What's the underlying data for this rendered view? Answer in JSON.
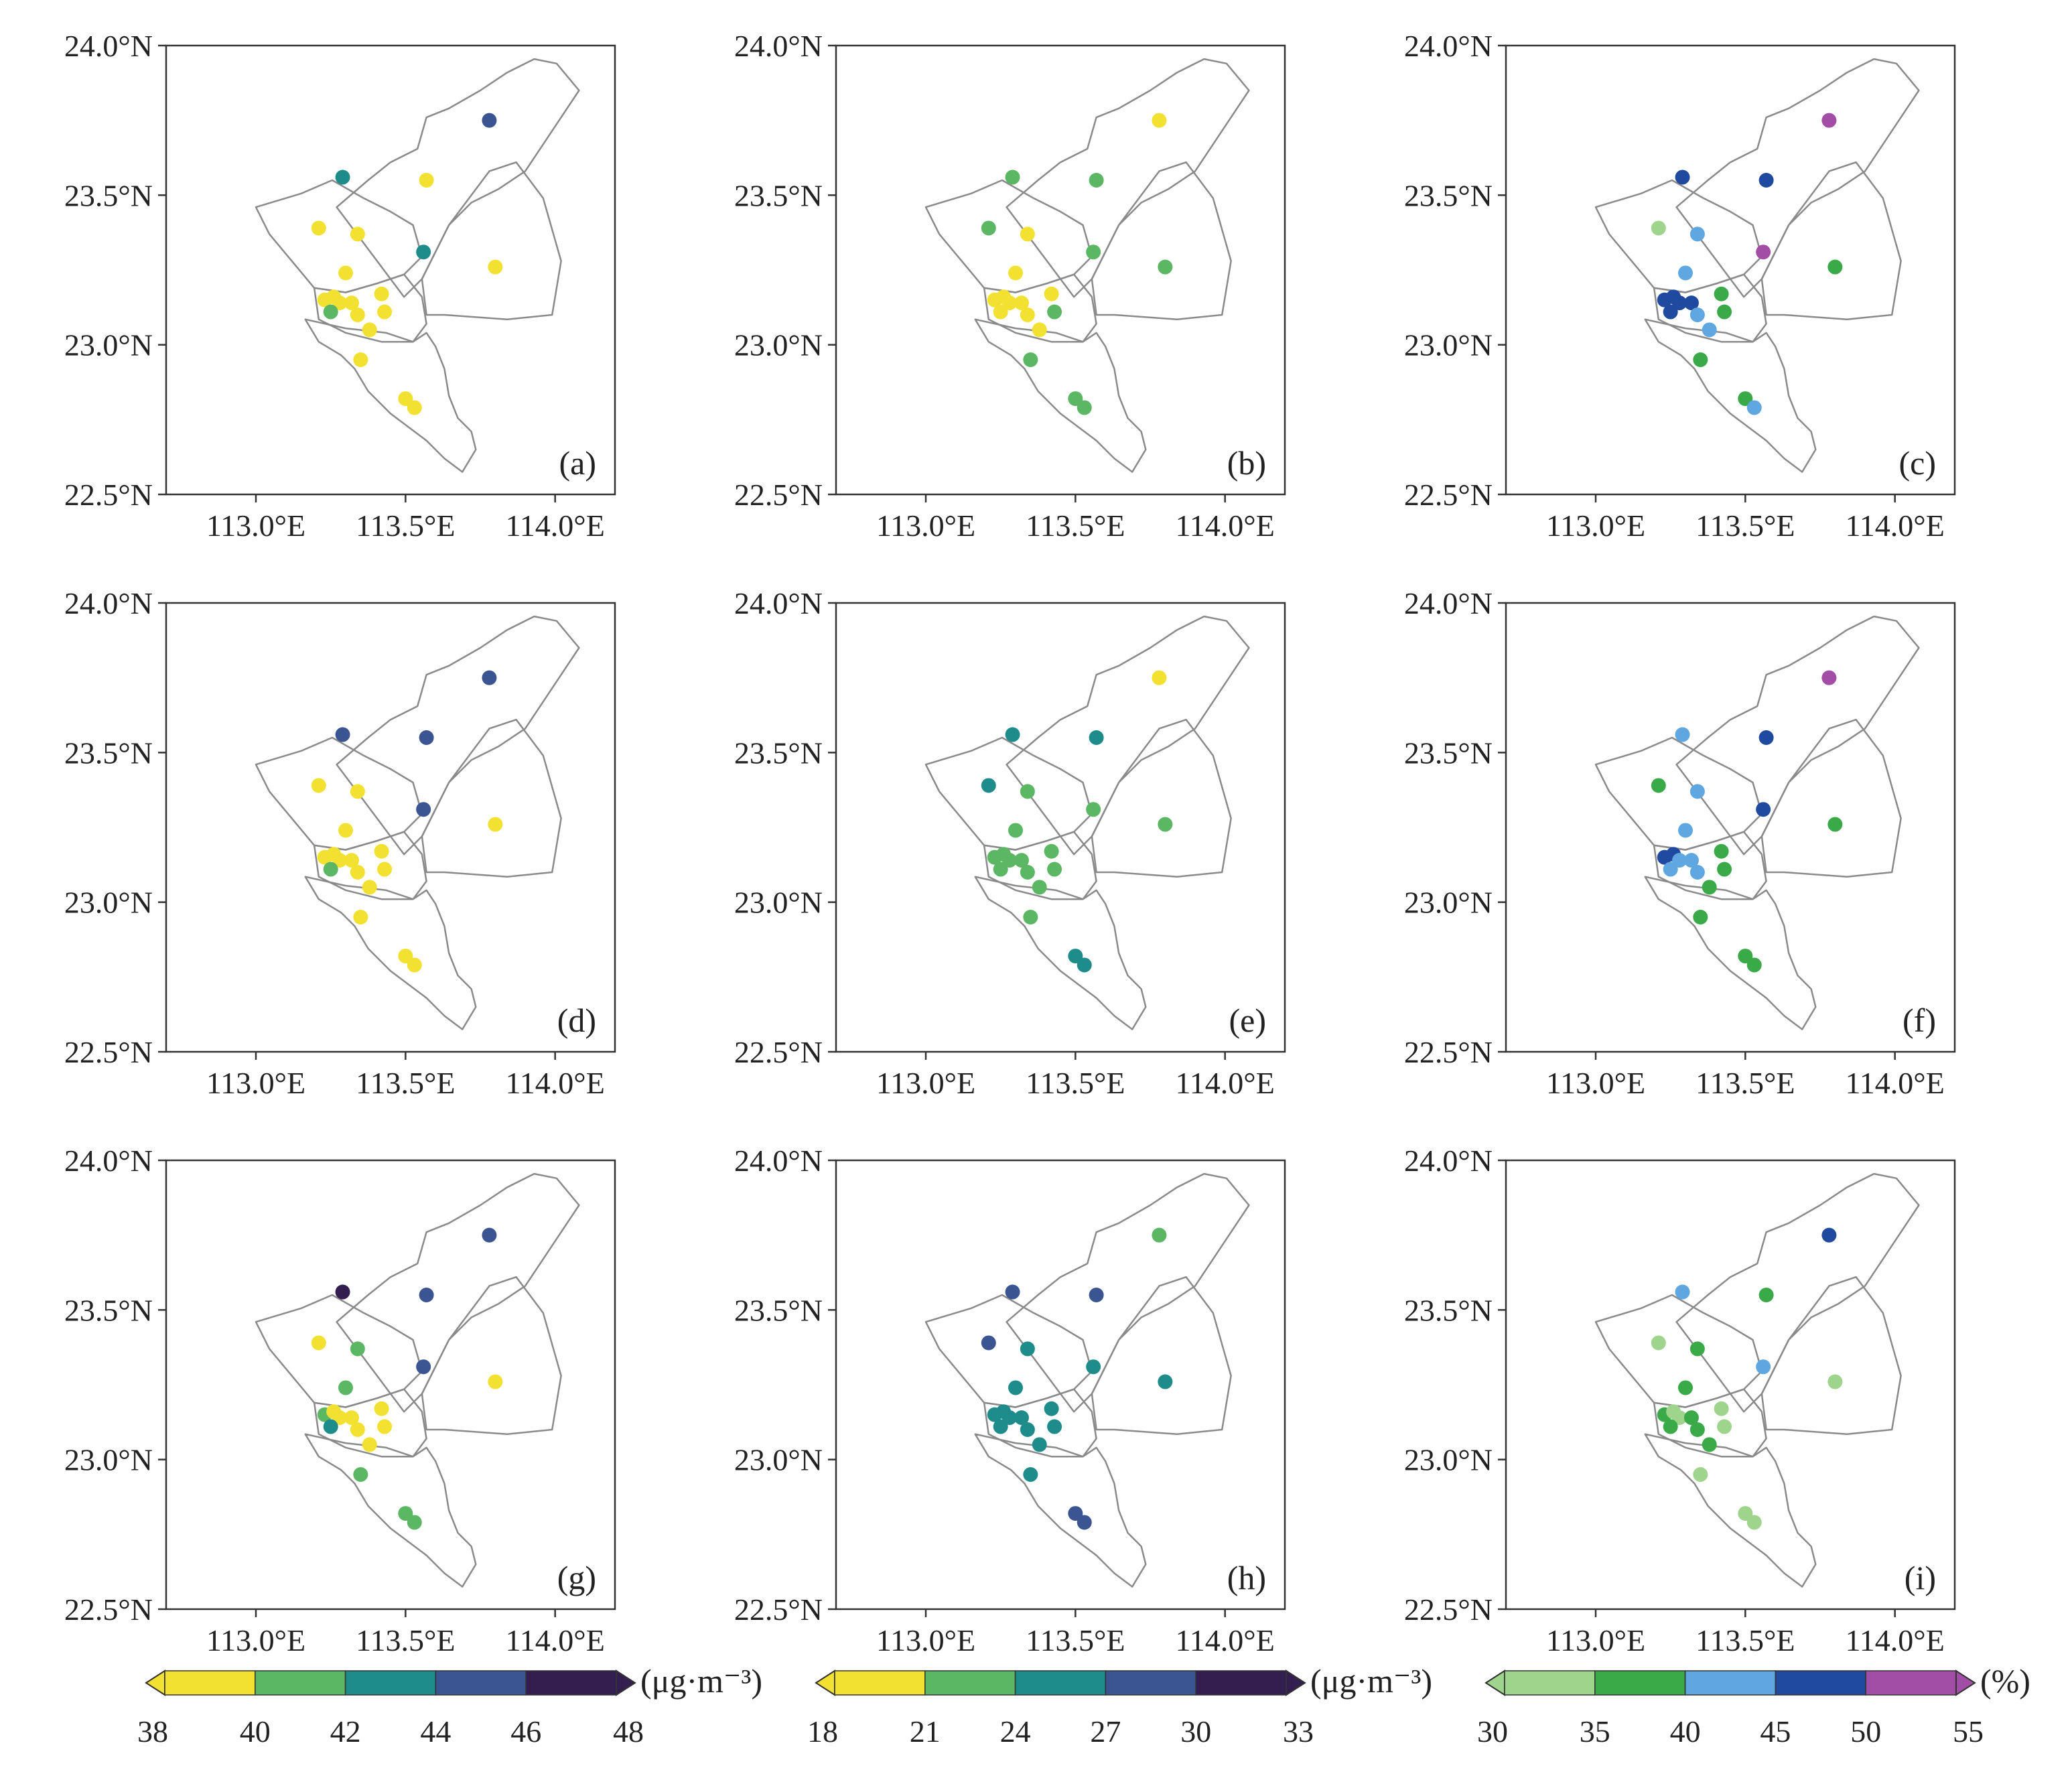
{
  "figure": {
    "y_tick_labels": [
      "24.0°N",
      "23.5°N",
      "23.0°N",
      "22.5°N"
    ],
    "x_tick_labels": [
      "113.0°E",
      "113.5°E",
      "114.0°E"
    ],
    "lat_ticks": [
      24.0,
      23.5,
      23.0,
      22.5
    ],
    "lon_ticks": [
      113.0,
      113.5,
      114.0
    ],
    "extent": {
      "lon": [
        112.7,
        114.2
      ],
      "lat": [
        22.5,
        24.0
      ]
    }
  },
  "colorbars": [
    {
      "ticks": [
        "38",
        "40",
        "42",
        "44",
        "46",
        "48"
      ],
      "unit": "(μg·m⁻³)",
      "colors": [
        "#f2e131",
        "#5bb763",
        "#1f8c8c",
        "#3a5591",
        "#341d4f"
      ]
    },
    {
      "ticks": [
        "18",
        "21",
        "24",
        "27",
        "30",
        "33"
      ],
      "unit": "(μg·m⁻³)",
      "colors": [
        "#f2e131",
        "#5bb763",
        "#1f8c8c",
        "#3a5591",
        "#341d4f"
      ]
    },
    {
      "ticks": [
        "30",
        "35",
        "40",
        "45",
        "50",
        "55"
      ],
      "unit": "(%)",
      "colors": [
        "#9fd48c",
        "#3aaa48",
        "#5ea7e0",
        "#1f4aa0",
        "#a34ea6"
      ]
    }
  ],
  "stations": [
    {
      "lon": 113.78,
      "lat": 23.75
    },
    {
      "lon": 113.29,
      "lat": 23.56
    },
    {
      "lon": 113.57,
      "lat": 23.55
    },
    {
      "lon": 113.21,
      "lat": 23.39
    },
    {
      "lon": 113.34,
      "lat": 23.37
    },
    {
      "lon": 113.56,
      "lat": 23.31
    },
    {
      "lon": 113.8,
      "lat": 23.26
    },
    {
      "lon": 113.3,
      "lat": 23.24
    },
    {
      "lon": 113.42,
      "lat": 23.17
    },
    {
      "lon": 113.23,
      "lat": 23.15
    },
    {
      "lon": 113.26,
      "lat": 23.16
    },
    {
      "lon": 113.28,
      "lat": 23.14
    },
    {
      "lon": 113.32,
      "lat": 23.14
    },
    {
      "lon": 113.25,
      "lat": 23.11
    },
    {
      "lon": 113.34,
      "lat": 23.1
    },
    {
      "lon": 113.43,
      "lat": 23.11
    },
    {
      "lon": 113.38,
      "lat": 23.05
    },
    {
      "lon": 113.35,
      "lat": 22.95
    },
    {
      "lon": 113.5,
      "lat": 22.82
    },
    {
      "lon": 113.53,
      "lat": 22.79
    }
  ],
  "panels": [
    {
      "label": "(a)",
      "colorbar": 0,
      "classes": [
        3,
        2,
        0,
        0,
        0,
        2,
        0,
        0,
        0,
        0,
        0,
        0,
        0,
        1,
        0,
        0,
        0,
        0,
        0,
        0
      ]
    },
    {
      "label": "(b)",
      "colorbar": 1,
      "classes": [
        0,
        1,
        1,
        1,
        0,
        1,
        1,
        0,
        0,
        0,
        0,
        0,
        0,
        0,
        0,
        1,
        0,
        1,
        1,
        1
      ]
    },
    {
      "label": "(c)",
      "colorbar": 2,
      "classes": [
        4,
        3,
        3,
        0,
        2,
        4,
        1,
        2,
        1,
        3,
        3,
        3,
        3,
        3,
        2,
        1,
        2,
        1,
        1,
        2
      ]
    },
    {
      "label": "(d)",
      "colorbar": 0,
      "classes": [
        3,
        3,
        3,
        0,
        0,
        3,
        0,
        0,
        0,
        0,
        0,
        0,
        0,
        1,
        0,
        0,
        0,
        0,
        0,
        0
      ]
    },
    {
      "label": "(e)",
      "colorbar": 1,
      "classes": [
        0,
        2,
        2,
        2,
        1,
        1,
        1,
        1,
        1,
        1,
        1,
        1,
        1,
        1,
        1,
        1,
        1,
        1,
        2,
        2
      ]
    },
    {
      "label": "(f)",
      "colorbar": 2,
      "classes": [
        4,
        2,
        3,
        1,
        2,
        3,
        1,
        2,
        1,
        3,
        3,
        2,
        2,
        2,
        2,
        1,
        1,
        1,
        1,
        1
      ]
    },
    {
      "label": "(g)",
      "colorbar": 0,
      "classes": [
        3,
        4,
        3,
        0,
        1,
        3,
        0,
        1,
        0,
        1,
        0,
        0,
        0,
        2,
        0,
        0,
        0,
        1,
        1,
        1
      ]
    },
    {
      "label": "(h)",
      "colorbar": 1,
      "classes": [
        1,
        3,
        3,
        3,
        2,
        2,
        2,
        2,
        2,
        2,
        2,
        2,
        2,
        2,
        2,
        2,
        2,
        2,
        3,
        3
      ]
    },
    {
      "label": "(i)",
      "colorbar": 2,
      "classes": [
        3,
        2,
        1,
        0,
        1,
        2,
        0,
        1,
        0,
        1,
        0,
        0,
        1,
        1,
        1,
        0,
        1,
        0,
        0,
        0
      ]
    }
  ]
}
